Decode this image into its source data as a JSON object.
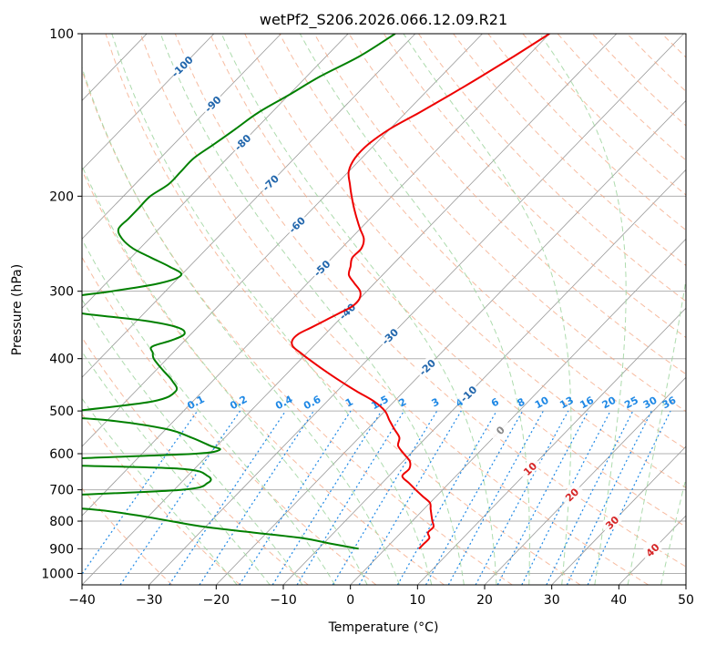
{
  "chart_data": {
    "type": "skewt",
    "title": "wetPf2_S206.2026.066.12.09.R21",
    "xlabel": "Temperature (°C)",
    "ylabel": "Pressure (hPa)",
    "xlim": [
      -40,
      50
    ],
    "ylim": [
      1050,
      100
    ],
    "x_ticks": [
      "−40",
      "−30",
      "−20",
      "−10",
      "0",
      "10",
      "20",
      "30",
      "40",
      "50"
    ],
    "y_ticks": [
      "100",
      "200",
      "300",
      "400",
      "500",
      "600",
      "700",
      "800",
      "900",
      "1000"
    ],
    "grid": true,
    "colors": {
      "temperature": "#ee0000",
      "dewpoint": "#008000",
      "isotherm": "#999999",
      "dry_adiabat": "#f4a582",
      "moist_adiabat": "#9fd59f",
      "mixing_ratio": "#1e88e5",
      "isotherm_label": "#2166ac",
      "warm_label": "#d62728"
    },
    "isotherm_labels": [
      {
        "text": "-100",
        "t": -100,
        "p": 115
      },
      {
        "text": "-90",
        "t": -90,
        "p": 135
      },
      {
        "text": "-80",
        "t": -80,
        "p": 159
      },
      {
        "text": "-70",
        "t": -70,
        "p": 189
      },
      {
        "text": "-60",
        "t": -60,
        "p": 226
      },
      {
        "text": "-50",
        "t": -50,
        "p": 272
      },
      {
        "text": "-40",
        "t": -40,
        "p": 327
      },
      {
        "text": "-30",
        "t": -30,
        "p": 364
      },
      {
        "text": "-20",
        "t": -20,
        "p": 415
      },
      {
        "text": "-10",
        "t": -10,
        "p": 465
      },
      {
        "text": "0",
        "t": 0,
        "p": 543
      },
      {
        "text": "10",
        "t": 10,
        "p": 640
      },
      {
        "text": "20",
        "t": 20,
        "p": 715
      },
      {
        "text": "30",
        "t": 30,
        "p": 805
      },
      {
        "text": "40",
        "t": 40,
        "p": 905
      }
    ],
    "mixing_ratio_labels": [
      "0.1",
      "0.2",
      "0.4",
      "0.6",
      "1",
      "1.5",
      "2",
      "3",
      "4",
      "6",
      "8",
      "10",
      "13",
      "16",
      "20",
      "25",
      "30",
      "36"
    ],
    "temperature": {
      "p": [
        100,
        110,
        120,
        130,
        140,
        150,
        160,
        170,
        180,
        190,
        200,
        210,
        220,
        230,
        240,
        250,
        260,
        270,
        280,
        290,
        300,
        310,
        320,
        330,
        340,
        350,
        360,
        370,
        380,
        390,
        400,
        420,
        440,
        460,
        480,
        500,
        520,
        540,
        560,
        580,
        600,
        620,
        640,
        660,
        680,
        700,
        720,
        740,
        760,
        780,
        800,
        820,
        840,
        860,
        880,
        900
      ],
      "t": [
        -50,
        -52,
        -54,
        -56,
        -58,
        -60,
        -61,
        -61,
        -60,
        -58,
        -56,
        -54,
        -52,
        -50,
        -48,
        -47,
        -47,
        -46,
        -45,
        -43,
        -41,
        -40,
        -40,
        -41,
        -42,
        -43,
        -44,
        -44,
        -43,
        -41,
        -39,
        -35,
        -31,
        -27,
        -23,
        -20,
        -18,
        -16,
        -14,
        -13,
        -11,
        -9,
        -8,
        -8,
        -6,
        -4,
        -2,
        0,
        1,
        2,
        3,
        4,
        4,
        5,
        5,
        5
      ]
    },
    "dewpoint": {
      "p": [
        100,
        110,
        120,
        130,
        140,
        150,
        160,
        170,
        180,
        190,
        200,
        210,
        220,
        230,
        240,
        250,
        260,
        270,
        280,
        290,
        300,
        310,
        320,
        330,
        340,
        350,
        360,
        370,
        380,
        390,
        400,
        420,
        440,
        460,
        480,
        500,
        510,
        520,
        540,
        560,
        580,
        590,
        600,
        610,
        620,
        630,
        640,
        660,
        680,
        700,
        720,
        740,
        760,
        780,
        800,
        820,
        840,
        860,
        880,
        900
      ],
      "t": [
        -73,
        -75,
        -78,
        -80,
        -82,
        -83,
        -84,
        -85,
        -85,
        -85,
        -86,
        -86,
        -86,
        -86,
        -84,
        -81,
        -77,
        -73,
        -70,
        -72,
        -78,
        -85,
        -86,
        -79,
        -69,
        -63,
        -61,
        -62,
        -64,
        -63,
        -62,
        -59,
        -56,
        -54,
        -56,
        -66,
        -70,
        -60,
        -50,
        -45,
        -41,
        -39,
        -42,
        -56,
        -67,
        -60,
        -42,
        -37,
        -36,
        -39,
        -58,
        -66,
        -50,
        -42,
        -36,
        -30,
        -22,
        -14,
        -9,
        -4
      ]
    },
    "x_label_value_sample": "0"
  }
}
